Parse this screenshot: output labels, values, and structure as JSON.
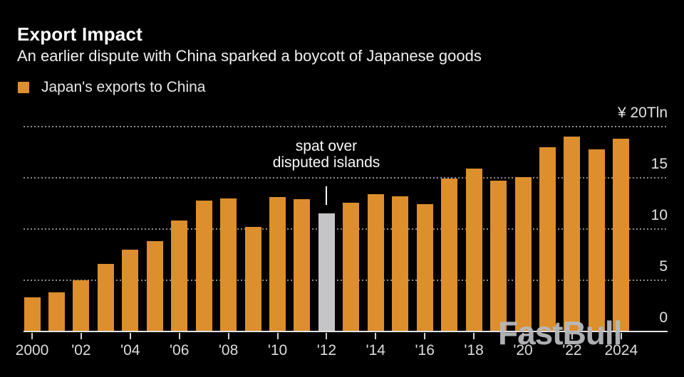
{
  "header": {
    "title": "Export Impact",
    "subtitle": "An earlier dispute with China sparked a boycott of Japanese goods"
  },
  "legend": {
    "label": "Japan's exports to China",
    "swatch_color": "#DD8E2D"
  },
  "annotation": {
    "line1": "spat over",
    "line2": "disputed islands"
  },
  "watermark": "FastBull",
  "colors": {
    "background": "#000000",
    "bar": "#DD8E2D",
    "highlight_bar": "#C5C5C7",
    "gridline": "#8d8d8d",
    "axis_line": "#e2e2e2",
    "text": "#f0f0f0"
  },
  "chart_data": {
    "type": "bar",
    "title": "Export Impact",
    "subtitle": "An earlier dispute with China sparked a boycott of Japanese goods",
    "series_name": "Japan's exports to China",
    "unit_label": "¥ 20Tln",
    "x": [
      2000,
      2001,
      2002,
      2003,
      2004,
      2005,
      2006,
      2007,
      2008,
      2009,
      2010,
      2011,
      2012,
      2013,
      2014,
      2015,
      2016,
      2017,
      2018,
      2019,
      2020,
      2021,
      2022,
      2023,
      2024
    ],
    "values": [
      3.3,
      3.8,
      5.0,
      6.6,
      8.0,
      8.8,
      10.8,
      12.8,
      13.0,
      10.2,
      13.1,
      12.9,
      11.5,
      12.6,
      13.4,
      13.2,
      12.4,
      14.9,
      15.9,
      14.7,
      15.1,
      18.0,
      19.0,
      17.8,
      18.8
    ],
    "bar_color": "#DD8E2D",
    "highlight": {
      "year": 2012,
      "color": "#C5C5C7",
      "annotation": "spat over disputed islands"
    },
    "ylim": [
      0,
      20
    ],
    "y_gridlines": [
      5,
      10,
      15,
      20
    ],
    "y_labels": [
      {
        "value": 0,
        "label": "0"
      },
      {
        "value": 5,
        "label": "5"
      },
      {
        "value": 10,
        "label": "10"
      },
      {
        "value": 15,
        "label": "15"
      },
      {
        "value": 20,
        "label": "¥ 20Tln"
      }
    ],
    "x_ticks": [
      {
        "year": 2000,
        "label": "2000"
      },
      {
        "year": 2002,
        "label": "'02"
      },
      {
        "year": 2004,
        "label": "'04"
      },
      {
        "year": 2006,
        "label": "'06"
      },
      {
        "year": 2008,
        "label": "'08"
      },
      {
        "year": 2010,
        "label": "'10"
      },
      {
        "year": 2012,
        "label": "'12"
      },
      {
        "year": 2014,
        "label": "'14"
      },
      {
        "year": 2016,
        "label": "'16"
      },
      {
        "year": 2018,
        "label": "'18"
      },
      {
        "year": 2020,
        "label": "'20"
      },
      {
        "year": 2022,
        "label": "'22"
      },
      {
        "year": 2024,
        "label": "2024"
      }
    ],
    "grid": "horizontal-dotted",
    "legend_position": "top-left",
    "y_axis_side": "right"
  }
}
